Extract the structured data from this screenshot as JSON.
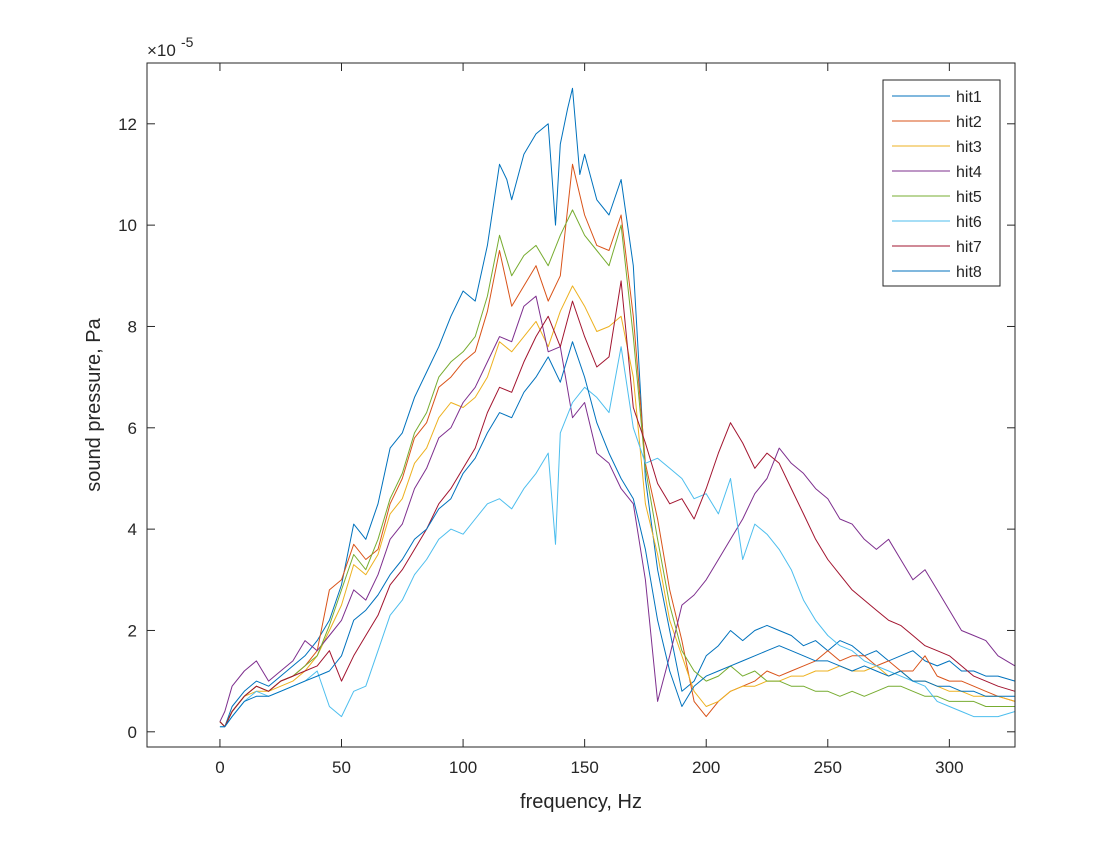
{
  "chart_data": {
    "type": "line",
    "title": "",
    "xlabel": "frequency, Hz",
    "ylabel": "sound pressure, Pa",
    "y_exponent_label": "×10",
    "y_exponent_power": "-5",
    "y_scale": 1e-05,
    "xlim": [
      -30,
      327
    ],
    "ylim": [
      -0.3,
      13.2
    ],
    "xticks": [
      0,
      50,
      100,
      150,
      200,
      250,
      300
    ],
    "xtick_labels": [
      "0",
      "50",
      "100",
      "150",
      "200",
      "250",
      "300"
    ],
    "yticks": [
      0,
      2,
      4,
      6,
      8,
      10,
      12
    ],
    "ytick_labels": [
      "0",
      "2",
      "4",
      "6",
      "8",
      "10",
      "12"
    ],
    "grid": false,
    "legend_position": "top-right",
    "series": [
      {
        "name": "hit1",
        "color": "#0072BD",
        "x": [
          0,
          2,
          5,
          10,
          15,
          20,
          25,
          30,
          35,
          40,
          45,
          50,
          55,
          60,
          65,
          70,
          75,
          80,
          85,
          90,
          95,
          100,
          105,
          110,
          115,
          118,
          120,
          125,
          130,
          135,
          138,
          140,
          143,
          145,
          148,
          150,
          155,
          160,
          165,
          170,
          175,
          180,
          185,
          190,
          195,
          200,
          205,
          210,
          215,
          220,
          225,
          230,
          235,
          240,
          245,
          250,
          255,
          260,
          265,
          270,
          275,
          280,
          285,
          290,
          295,
          300,
          305,
          310,
          315,
          320,
          327
        ],
        "values": [
          0.2,
          0.1,
          0.5,
          0.8,
          1.0,
          0.9,
          1.1,
          1.3,
          1.5,
          1.8,
          2.2,
          2.9,
          4.1,
          3.8,
          4.5,
          5.6,
          5.9,
          6.6,
          7.1,
          7.6,
          8.2,
          8.7,
          8.5,
          9.6,
          11.2,
          10.9,
          10.5,
          11.4,
          11.8,
          12.0,
          10.0,
          11.6,
          12.3,
          12.7,
          11.0,
          11.4,
          10.5,
          10.2,
          10.9,
          9.2,
          5.0,
          3.2,
          2.0,
          0.8,
          1.0,
          1.5,
          1.7,
          2.0,
          1.8,
          2.0,
          2.1,
          2.0,
          1.9,
          1.7,
          1.8,
          1.6,
          1.8,
          1.7,
          1.5,
          1.6,
          1.4,
          1.5,
          1.6,
          1.4,
          1.3,
          1.4,
          1.2,
          1.2,
          1.1,
          1.1,
          1.0
        ]
      },
      {
        "name": "hit2",
        "color": "#D95319",
        "x": [
          0,
          2,
          5,
          10,
          15,
          20,
          25,
          30,
          35,
          40,
          45,
          50,
          55,
          60,
          65,
          70,
          75,
          80,
          85,
          90,
          95,
          100,
          105,
          110,
          115,
          120,
          125,
          130,
          135,
          140,
          145,
          150,
          155,
          160,
          165,
          170,
          175,
          180,
          185,
          190,
          195,
          200,
          205,
          210,
          215,
          220,
          225,
          230,
          235,
          240,
          245,
          250,
          255,
          260,
          265,
          270,
          275,
          280,
          285,
          290,
          295,
          300,
          305,
          310,
          315,
          320,
          327
        ],
        "values": [
          0.2,
          0.1,
          0.4,
          0.7,
          0.9,
          0.8,
          1.0,
          1.1,
          1.3,
          1.6,
          2.8,
          3.0,
          3.7,
          3.4,
          3.6,
          4.5,
          5.0,
          5.8,
          6.1,
          6.8,
          7.0,
          7.3,
          7.5,
          8.3,
          9.5,
          8.4,
          8.8,
          9.2,
          8.5,
          9.0,
          11.2,
          10.2,
          9.6,
          9.5,
          10.2,
          8.2,
          5.3,
          4.2,
          2.8,
          1.8,
          0.6,
          0.3,
          0.6,
          0.8,
          0.9,
          1.0,
          1.2,
          1.1,
          1.2,
          1.3,
          1.4,
          1.6,
          1.4,
          1.5,
          1.5,
          1.3,
          1.4,
          1.2,
          1.2,
          1.5,
          1.1,
          1.0,
          1.0,
          0.9,
          0.8,
          0.7,
          0.6
        ]
      },
      {
        "name": "hit3",
        "color": "#EDB120",
        "x": [
          0,
          2,
          5,
          10,
          15,
          20,
          25,
          30,
          35,
          40,
          45,
          50,
          55,
          60,
          65,
          70,
          75,
          80,
          85,
          90,
          95,
          100,
          105,
          110,
          115,
          120,
          125,
          130,
          135,
          140,
          145,
          150,
          155,
          160,
          165,
          170,
          175,
          180,
          185,
          190,
          195,
          200,
          205,
          210,
          215,
          220,
          225,
          230,
          235,
          240,
          245,
          250,
          255,
          260,
          265,
          270,
          275,
          280,
          285,
          290,
          295,
          300,
          305,
          310,
          315,
          320,
          327
        ],
        "values": [
          0.2,
          0.1,
          0.4,
          0.7,
          0.8,
          0.8,
          0.9,
          1.0,
          1.2,
          1.5,
          2.0,
          2.5,
          3.3,
          3.1,
          3.5,
          4.3,
          4.6,
          5.3,
          5.6,
          6.2,
          6.5,
          6.4,
          6.6,
          7.0,
          7.7,
          7.5,
          7.8,
          8.1,
          7.6,
          8.3,
          8.8,
          8.4,
          7.9,
          8.0,
          8.2,
          7.0,
          4.5,
          3.5,
          2.2,
          1.5,
          0.8,
          0.5,
          0.6,
          0.8,
          0.9,
          0.9,
          1.0,
          1.0,
          1.1,
          1.1,
          1.2,
          1.2,
          1.3,
          1.2,
          1.2,
          1.3,
          1.1,
          1.2,
          1.0,
          1.0,
          0.9,
          0.8,
          0.8,
          0.7,
          0.7,
          0.7,
          0.6
        ]
      },
      {
        "name": "hit4",
        "color": "#7E2F8E",
        "x": [
          0,
          2,
          5,
          10,
          15,
          20,
          25,
          30,
          35,
          40,
          45,
          50,
          55,
          60,
          65,
          70,
          75,
          80,
          85,
          90,
          95,
          100,
          105,
          110,
          115,
          120,
          125,
          130,
          135,
          140,
          145,
          150,
          155,
          160,
          165,
          170,
          175,
          180,
          185,
          190,
          195,
          200,
          205,
          210,
          215,
          220,
          225,
          230,
          235,
          240,
          245,
          250,
          255,
          260,
          265,
          270,
          275,
          280,
          285,
          290,
          295,
          300,
          305,
          310,
          315,
          320,
          327
        ],
        "values": [
          0.2,
          0.4,
          0.9,
          1.2,
          1.4,
          1.0,
          1.2,
          1.4,
          1.8,
          1.6,
          1.9,
          2.2,
          2.8,
          2.6,
          3.1,
          3.8,
          4.1,
          4.8,
          5.2,
          5.8,
          6.0,
          6.5,
          6.8,
          7.3,
          7.8,
          7.7,
          8.4,
          8.6,
          7.5,
          7.6,
          6.2,
          6.5,
          5.5,
          5.3,
          4.8,
          4.5,
          3.0,
          0.6,
          1.5,
          2.5,
          2.7,
          3.0,
          3.4,
          3.8,
          4.2,
          4.7,
          5.0,
          5.6,
          5.3,
          5.1,
          4.8,
          4.6,
          4.2,
          4.1,
          3.8,
          3.6,
          3.8,
          3.4,
          3.0,
          3.2,
          2.8,
          2.4,
          2.0,
          1.9,
          1.8,
          1.5,
          1.3
        ]
      },
      {
        "name": "hit5",
        "color": "#77AC30",
        "x": [
          0,
          2,
          5,
          10,
          15,
          20,
          25,
          30,
          35,
          40,
          45,
          50,
          55,
          60,
          65,
          70,
          75,
          80,
          85,
          90,
          95,
          100,
          105,
          110,
          115,
          120,
          125,
          130,
          135,
          140,
          145,
          150,
          155,
          160,
          165,
          170,
          175,
          180,
          185,
          190,
          195,
          200,
          205,
          210,
          215,
          220,
          225,
          230,
          235,
          240,
          245,
          250,
          255,
          260,
          265,
          270,
          275,
          280,
          285,
          290,
          295,
          300,
          305,
          310,
          315,
          320,
          327
        ],
        "values": [
          0.2,
          0.1,
          0.4,
          0.7,
          0.9,
          0.8,
          1.0,
          1.1,
          1.3,
          1.5,
          2.1,
          2.8,
          3.5,
          3.2,
          3.8,
          4.6,
          5.1,
          5.9,
          6.3,
          7.0,
          7.3,
          7.5,
          7.8,
          8.6,
          9.8,
          9.0,
          9.4,
          9.6,
          9.2,
          9.8,
          10.3,
          9.8,
          9.5,
          9.2,
          10.0,
          7.8,
          5.2,
          3.8,
          2.5,
          1.6,
          1.2,
          1.0,
          1.1,
          1.3,
          1.1,
          1.2,
          1.0,
          1.0,
          0.9,
          0.9,
          0.8,
          0.8,
          0.7,
          0.8,
          0.7,
          0.8,
          0.9,
          0.9,
          0.8,
          0.7,
          0.7,
          0.6,
          0.6,
          0.6,
          0.5,
          0.5,
          0.5
        ]
      },
      {
        "name": "hit6",
        "color": "#4DBEEE",
        "x": [
          0,
          2,
          5,
          10,
          15,
          20,
          25,
          30,
          35,
          40,
          45,
          50,
          55,
          60,
          65,
          70,
          75,
          80,
          85,
          90,
          95,
          100,
          105,
          110,
          115,
          120,
          125,
          130,
          135,
          138,
          140,
          145,
          150,
          155,
          160,
          165,
          170,
          175,
          180,
          185,
          190,
          195,
          200,
          205,
          210,
          215,
          220,
          225,
          230,
          235,
          240,
          245,
          250,
          255,
          260,
          265,
          270,
          275,
          280,
          285,
          290,
          295,
          300,
          305,
          310,
          315,
          320,
          327
        ],
        "values": [
          0.1,
          0.1,
          0.3,
          0.6,
          0.8,
          0.7,
          0.8,
          0.9,
          1.0,
          1.2,
          0.5,
          0.3,
          0.8,
          0.9,
          1.6,
          2.3,
          2.6,
          3.1,
          3.4,
          3.8,
          4.0,
          3.9,
          4.2,
          4.5,
          4.6,
          4.4,
          4.8,
          5.1,
          5.5,
          3.7,
          5.9,
          6.5,
          6.8,
          6.6,
          6.3,
          7.6,
          6.0,
          5.3,
          5.4,
          5.2,
          5.0,
          4.6,
          4.7,
          4.3,
          5.0,
          3.4,
          4.1,
          3.9,
          3.6,
          3.2,
          2.6,
          2.2,
          1.9,
          1.7,
          1.6,
          1.4,
          1.3,
          1.2,
          1.1,
          1.0,
          0.9,
          0.6,
          0.5,
          0.4,
          0.3,
          0.3,
          0.3,
          0.4
        ]
      },
      {
        "name": "hit7",
        "color": "#A2142F",
        "x": [
          0,
          2,
          5,
          10,
          15,
          20,
          25,
          30,
          35,
          40,
          45,
          50,
          55,
          60,
          65,
          70,
          75,
          80,
          85,
          90,
          95,
          100,
          105,
          110,
          115,
          120,
          125,
          130,
          135,
          140,
          145,
          150,
          155,
          160,
          165,
          170,
          175,
          180,
          185,
          190,
          195,
          200,
          205,
          210,
          215,
          220,
          225,
          230,
          235,
          240,
          245,
          250,
          255,
          260,
          265,
          270,
          275,
          280,
          285,
          290,
          295,
          300,
          305,
          310,
          315,
          320,
          327
        ],
        "values": [
          0.2,
          0.1,
          0.4,
          0.7,
          0.9,
          0.8,
          1.0,
          1.1,
          1.2,
          1.3,
          1.6,
          1.0,
          1.5,
          1.9,
          2.3,
          2.9,
          3.2,
          3.6,
          4.0,
          4.5,
          4.8,
          5.2,
          5.6,
          6.3,
          6.8,
          6.7,
          7.3,
          7.8,
          8.2,
          7.6,
          8.5,
          7.8,
          7.2,
          7.4,
          8.9,
          6.4,
          5.7,
          4.9,
          4.5,
          4.6,
          4.2,
          4.8,
          5.5,
          6.1,
          5.7,
          5.2,
          5.5,
          5.3,
          4.8,
          4.3,
          3.8,
          3.4,
          3.1,
          2.8,
          2.6,
          2.4,
          2.2,
          2.1,
          1.9,
          1.7,
          1.6,
          1.5,
          1.3,
          1.1,
          1.0,
          0.9,
          0.8
        ]
      },
      {
        "name": "hit8",
        "color": "#0072BD",
        "x": [
          0,
          2,
          5,
          10,
          15,
          20,
          25,
          30,
          35,
          40,
          45,
          50,
          55,
          60,
          65,
          70,
          75,
          80,
          85,
          90,
          95,
          100,
          105,
          110,
          115,
          120,
          125,
          130,
          135,
          140,
          145,
          150,
          155,
          160,
          165,
          170,
          175,
          180,
          185,
          190,
          195,
          200,
          205,
          210,
          215,
          220,
          225,
          230,
          235,
          240,
          245,
          250,
          255,
          260,
          265,
          270,
          275,
          280,
          285,
          290,
          295,
          300,
          305,
          310,
          315,
          320,
          327
        ],
        "values": [
          0.1,
          0.1,
          0.3,
          0.6,
          0.7,
          0.7,
          0.8,
          0.9,
          1.0,
          1.1,
          1.2,
          1.5,
          2.2,
          2.4,
          2.7,
          3.1,
          3.4,
          3.8,
          4.0,
          4.4,
          4.6,
          5.1,
          5.4,
          5.9,
          6.3,
          6.2,
          6.7,
          7.0,
          7.4,
          6.9,
          7.7,
          7.0,
          6.1,
          5.5,
          5.0,
          4.6,
          3.6,
          2.2,
          1.2,
          0.5,
          0.9,
          1.1,
          1.2,
          1.3,
          1.4,
          1.5,
          1.6,
          1.7,
          1.6,
          1.5,
          1.4,
          1.4,
          1.3,
          1.2,
          1.3,
          1.2,
          1.1,
          1.2,
          1.0,
          1.0,
          0.9,
          0.9,
          0.8,
          0.8,
          0.7,
          0.7,
          0.7
        ]
      }
    ]
  }
}
